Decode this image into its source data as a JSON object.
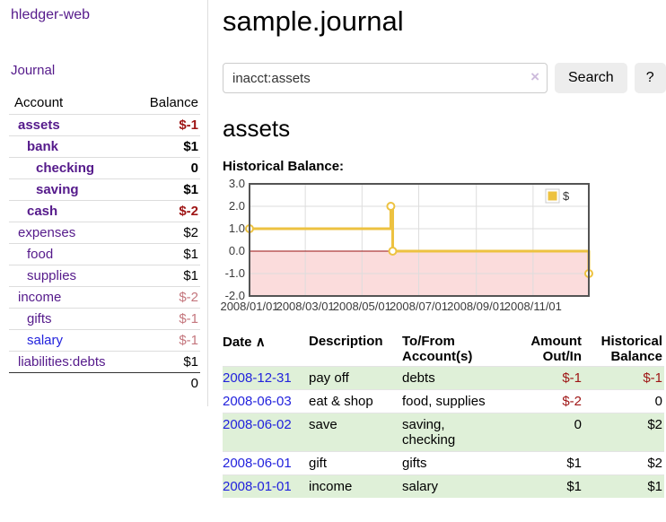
{
  "colors": {
    "link_purple": "#551A8B",
    "link_blue": "#2222DD",
    "negative_strong": "#9E1414",
    "negative_faded": "#C4767D",
    "row_shaded_green": "#DFF0D8",
    "chart_line_gold": "#EDC240"
  },
  "sidebar": {
    "brand": "hledger-web",
    "nav": {
      "journal": "Journal"
    },
    "accounts_table": {
      "headers": {
        "account": "Account",
        "balance": "Balance"
      },
      "rows": [
        {
          "name": "assets",
          "balance": "$-1",
          "level": 1,
          "bold": true,
          "neg": "strong"
        },
        {
          "name": "bank",
          "balance": "$1",
          "level": 2,
          "bold": true,
          "neg": null
        },
        {
          "name": "checking",
          "balance": "0",
          "level": 3,
          "bold": true,
          "neg": null
        },
        {
          "name": "saving",
          "balance": "$1",
          "level": 3,
          "bold": true,
          "neg": null
        },
        {
          "name": "cash",
          "balance": "$-2",
          "level": 2,
          "bold": true,
          "neg": "strong"
        },
        {
          "name": "expenses",
          "balance": "$2",
          "level": 1,
          "bold": false,
          "neg": null
        },
        {
          "name": "food",
          "balance": "$1",
          "level": 2,
          "bold": false,
          "neg": null
        },
        {
          "name": "supplies",
          "balance": "$1",
          "level": 2,
          "bold": false,
          "neg": null
        },
        {
          "name": "income",
          "balance": "$-2",
          "level": 1,
          "bold": false,
          "neg": "faded"
        },
        {
          "name": "gifts",
          "balance": "$-1",
          "level": 2,
          "bold": false,
          "neg": "faded"
        },
        {
          "name": "salary",
          "balance": "$-1",
          "level": 2,
          "bold": false,
          "neg": "faded",
          "link": "blue"
        },
        {
          "name": "liabilities:debts",
          "balance": "$1",
          "level": 1,
          "bold": false,
          "neg": null
        }
      ],
      "total": "0"
    }
  },
  "main": {
    "title": "sample.journal",
    "search": {
      "query": "inacct:assets",
      "clear_icon": "×",
      "button": "Search",
      "help_button": "?"
    },
    "account_heading": "assets"
  },
  "chart_data": {
    "type": "line",
    "title": "Historical Balance:",
    "x_start": "2008-01-01",
    "x_end": "2008-12-31",
    "ylim": [
      -2,
      3
    ],
    "grid": true,
    "y_ticks": [
      "3.0",
      "2.0",
      "1.0",
      "0.0",
      "-1.0",
      "-2.0"
    ],
    "x_ticks": [
      {
        "date": "2008-01-01",
        "label": "2008/01/01"
      },
      {
        "date": "2008-03-01",
        "label": "2008/03/01"
      },
      {
        "date": "2008-05-01",
        "label": "2008/05/01"
      },
      {
        "date": "2008-07-01",
        "label": "2008/07/01"
      },
      {
        "date": "2008-09-01",
        "label": "2008/09/01"
      },
      {
        "date": "2008-11-01",
        "label": "2008/11/01"
      }
    ],
    "series": [
      {
        "name": "$",
        "color": "#EDC240",
        "step": true,
        "points": [
          {
            "date": "2008-01-01",
            "value": 1
          },
          {
            "date": "2008-06-01",
            "value": 2
          },
          {
            "date": "2008-06-03",
            "value": 0
          },
          {
            "date": "2008-12-31",
            "value": -1
          }
        ]
      }
    ],
    "legend": {
      "label": "$",
      "position": "top-right"
    },
    "negative_region": true,
    "colors": {
      "line": "#EDC240",
      "marker_fill": "#FFFFFF",
      "negative_region": "#FBDCDC",
      "zero_line": "#991111",
      "border": "#545454",
      "gridline": "#DDDDDD",
      "axis_text": "#3A3A3A"
    }
  },
  "register": {
    "headers": {
      "date": "Date",
      "sort_icon": "∧",
      "description": "Description",
      "accounts": "To/From Account(s)",
      "amount": "Amount Out/In",
      "balance": "Historical Balance"
    },
    "rows": [
      {
        "date": "2008-12-31",
        "description": "pay off",
        "accounts": "debts",
        "amount": "$-1",
        "amount_neg": true,
        "balance": "$-1",
        "balance_neg": true,
        "shaded": true
      },
      {
        "date": "2008-06-03",
        "description": "eat & shop",
        "accounts": "food, supplies",
        "amount": "$-2",
        "amount_neg": true,
        "balance": "0",
        "balance_neg": false,
        "shaded": false
      },
      {
        "date": "2008-06-02",
        "description": "save",
        "accounts": "saving,\nchecking",
        "amount": "0",
        "amount_neg": false,
        "balance": "$2",
        "balance_neg": false,
        "shaded": true
      },
      {
        "date": "2008-06-01",
        "description": "gift",
        "accounts": "gifts",
        "amount": "$1",
        "amount_neg": false,
        "balance": "$2",
        "balance_neg": false,
        "shaded": false
      },
      {
        "date": "2008-01-01",
        "description": "income",
        "accounts": "salary",
        "amount": "$1",
        "amount_neg": false,
        "balance": "$1",
        "balance_neg": false,
        "shaded": true
      }
    ]
  }
}
